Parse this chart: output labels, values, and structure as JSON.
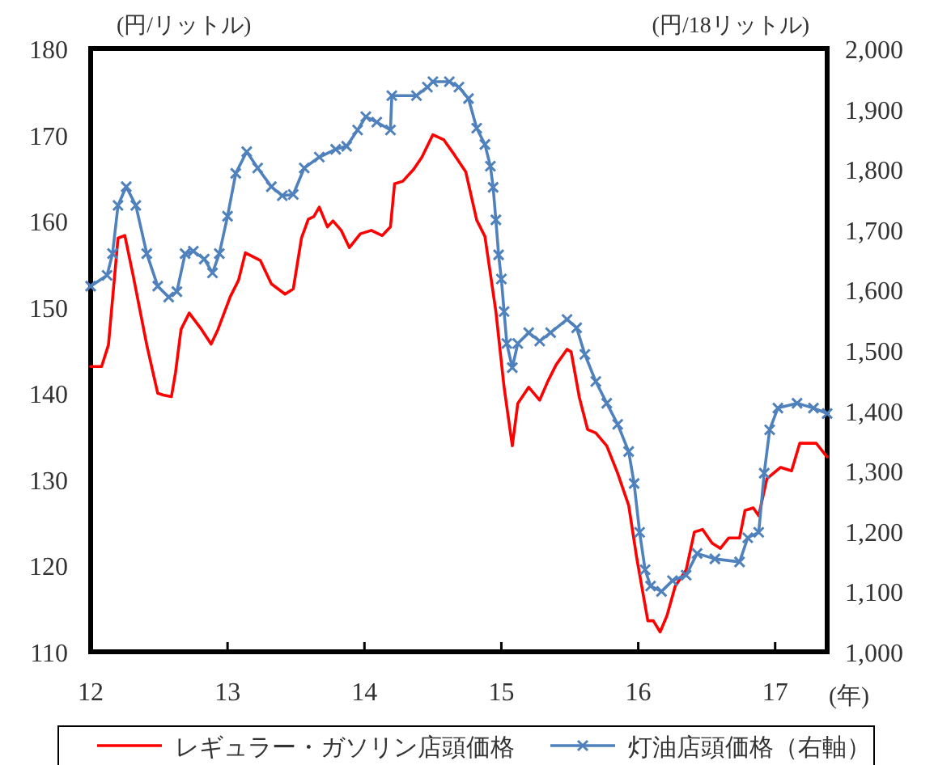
{
  "chart_data": {
    "type": "line",
    "xlabel": "(年)",
    "ylabel": "(円/リットル)",
    "y2label": "(円/18リットル)",
    "xlim": [
      12,
      17.38
    ],
    "xticks": [
      12,
      13,
      14,
      15,
      16,
      17
    ],
    "ylim": [
      110,
      180
    ],
    "yticks": [
      110,
      120,
      130,
      140,
      150,
      160,
      170,
      180
    ],
    "y2lim": [
      1000,
      2000
    ],
    "y2ticks": [
      {
        "value": 1000,
        "label": "1,000"
      },
      {
        "value": 1100,
        "label": "1,100"
      },
      {
        "value": 1200,
        "label": "1,200"
      },
      {
        "value": 1300,
        "label": "1,300"
      },
      {
        "value": 1400,
        "label": "1,400"
      },
      {
        "value": 1500,
        "label": "1,500"
      },
      {
        "value": 1600,
        "label": "1,600"
      },
      {
        "value": 1700,
        "label": "1,700"
      },
      {
        "value": 1800,
        "label": "1,800"
      },
      {
        "value": 1900,
        "label": "1,900"
      },
      {
        "value": 2000,
        "label": "2,000"
      }
    ],
    "grid": false,
    "legend": "bottom",
    "series": [
      {
        "name": "レギュラー・ガソリン店頭価格",
        "color": "#ff0000",
        "marker": "none",
        "x": [
          12.0,
          12.08,
          12.13,
          12.2,
          12.25,
          12.31,
          12.41,
          12.49,
          12.53,
          12.59,
          12.62,
          12.66,
          12.72,
          12.81,
          12.88,
          12.93,
          13.02,
          13.08,
          13.13,
          13.24,
          13.32,
          13.42,
          13.48,
          13.54,
          13.59,
          13.63,
          13.67,
          13.73,
          13.77,
          13.83,
          13.89,
          13.97,
          14.05,
          14.13,
          14.19,
          14.22,
          14.28,
          14.36,
          14.42,
          14.5,
          14.58,
          14.66,
          14.74,
          14.82,
          14.88,
          14.96,
          15.02,
          15.08,
          15.12,
          15.2,
          15.28,
          15.34,
          15.4,
          15.48,
          15.51,
          15.57,
          15.63,
          15.69,
          15.77,
          15.85,
          15.93,
          15.99,
          16.07,
          16.11,
          16.16,
          16.21,
          16.27,
          16.35,
          16.41,
          16.47,
          16.54,
          16.6,
          16.66,
          16.74,
          16.78,
          16.84,
          16.88,
          16.94,
          17.04,
          17.12,
          17.18,
          17.3,
          17.38
        ],
        "values": [
          143.1,
          143.1,
          145.6,
          158.0,
          158.3,
          153.7,
          145.6,
          140.0,
          139.8,
          139.6,
          142.4,
          147.4,
          149.3,
          147.4,
          145.7,
          147.4,
          151.2,
          153.1,
          156.3,
          155.4,
          152.7,
          151.5,
          152.1,
          158.0,
          160.2,
          160.5,
          161.6,
          159.3,
          160.0,
          158.9,
          156.9,
          158.5,
          158.9,
          158.3,
          159.3,
          164.3,
          164.6,
          166.0,
          167.4,
          170.0,
          169.4,
          167.6,
          165.7,
          160.1,
          158.2,
          149.5,
          140.7,
          133.9,
          138.8,
          140.7,
          139.2,
          141.4,
          143.3,
          145.1,
          144.8,
          139.5,
          135.8,
          135.4,
          133.9,
          130.7,
          127.0,
          120.8,
          113.6,
          113.6,
          112.3,
          114.2,
          117.6,
          119.5,
          123.9,
          124.2,
          122.6,
          122.0,
          123.2,
          123.2,
          126.4,
          126.7,
          125.8,
          130.1,
          131.4,
          131.0,
          134.2,
          134.2,
          132.6
        ]
      },
      {
        "name": "灯油店頭価格（右軸）",
        "color": "#4f81bd",
        "marker": "cross",
        "axis": "y2",
        "x": [
          12.0,
          12.12,
          12.16,
          12.2,
          12.26,
          12.33,
          12.41,
          12.49,
          12.57,
          12.63,
          12.69,
          12.75,
          12.83,
          12.89,
          12.94,
          13.0,
          13.06,
          13.14,
          13.22,
          13.32,
          13.4,
          13.48,
          13.56,
          13.67,
          13.79,
          13.87,
          13.95,
          14.01,
          14.09,
          14.19,
          14.2,
          14.38,
          14.46,
          14.5,
          14.62,
          14.69,
          14.76,
          14.82,
          14.88,
          14.92,
          14.94,
          14.96,
          14.98,
          15.0,
          15.02,
          15.04,
          15.08,
          15.12,
          15.2,
          15.28,
          15.36,
          15.48,
          15.55,
          15.61,
          15.69,
          15.77,
          15.85,
          15.93,
          15.97,
          16.01,
          16.05,
          16.09,
          16.17,
          16.25,
          16.35,
          16.43,
          16.56,
          16.74,
          16.8,
          16.88,
          16.92,
          16.96,
          17.02,
          17.16,
          17.28,
          17.38
        ],
        "values": [
          1606,
          1624,
          1660,
          1740,
          1771,
          1740,
          1660,
          1606,
          1588,
          1597,
          1660,
          1664,
          1651,
          1628,
          1660,
          1722,
          1793,
          1829,
          1802,
          1771,
          1756,
          1758,
          1802,
          1820,
          1833,
          1838,
          1865,
          1887,
          1878,
          1865,
          1922,
          1922,
          1936,
          1945,
          1945,
          1936,
          1917,
          1868,
          1841,
          1805,
          1770,
          1716,
          1658,
          1618,
          1564,
          1511,
          1471,
          1511,
          1529,
          1515,
          1529,
          1551,
          1537,
          1493,
          1448,
          1412,
          1377,
          1332,
          1279,
          1198,
          1136,
          1109,
          1100,
          1118,
          1127,
          1163,
          1154,
          1149,
          1189,
          1198,
          1296,
          1368,
          1404,
          1412,
          1404,
          1395
        ]
      }
    ]
  }
}
